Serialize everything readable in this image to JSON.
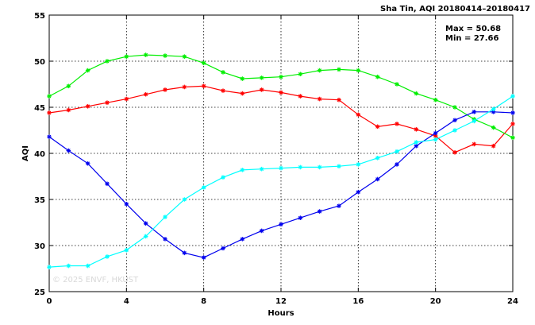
{
  "chart_data": {
    "type": "line",
    "title": "Sha Tin, AQI 20180414–20180417",
    "xlabel": "Hours",
    "ylabel": "AQI",
    "xlim": [
      0,
      24
    ],
    "ylim": [
      25,
      55
    ],
    "xticks": [
      0,
      4,
      8,
      12,
      16,
      20,
      24
    ],
    "yticks": [
      25,
      30,
      35,
      40,
      45,
      50,
      55
    ],
    "grid": true,
    "max_label": "Max = 50.68",
    "min_label": "Min = 27.66",
    "watermark": "© 2025  ENVF, HKUST",
    "x": [
      0,
      1,
      2,
      3,
      4,
      5,
      6,
      7,
      8,
      9,
      10,
      11,
      12,
      13,
      14,
      15,
      16,
      17,
      18,
      19,
      20,
      21,
      22,
      23,
      24
    ],
    "series": [
      {
        "color": "#ff0000",
        "values": [
          44.4,
          44.7,
          45.1,
          45.5,
          45.9,
          46.4,
          46.9,
          47.2,
          47.3,
          46.8,
          46.5,
          46.9,
          46.6,
          46.2,
          45.9,
          45.8,
          44.2,
          42.9,
          43.2,
          42.6,
          41.9,
          40.1,
          41.0,
          40.8,
          43.2
        ]
      },
      {
        "color": "#00ee00",
        "values": [
          46.2,
          47.3,
          49.0,
          50.0,
          50.5,
          50.68,
          50.6,
          50.5,
          49.8,
          48.8,
          48.1,
          48.2,
          48.3,
          48.6,
          49.0,
          49.1,
          49.0,
          48.3,
          47.5,
          46.5,
          45.8,
          45.0,
          43.7,
          42.8,
          41.7
        ]
      },
      {
        "color": "#0000ee",
        "values": [
          41.8,
          40.3,
          38.9,
          36.7,
          34.5,
          32.4,
          30.7,
          29.2,
          28.7,
          29.7,
          30.7,
          31.6,
          32.3,
          33.0,
          33.7,
          34.3,
          35.8,
          37.2,
          38.8,
          40.8,
          42.2,
          43.6,
          44.5,
          44.5,
          44.4
        ]
      },
      {
        "color": "#00ffff",
        "values": [
          27.66,
          27.8,
          27.8,
          28.8,
          29.5,
          31.0,
          33.1,
          35.0,
          36.3,
          37.4,
          38.2,
          38.3,
          38.4,
          38.5,
          38.5,
          38.6,
          38.8,
          39.5,
          40.2,
          41.2,
          41.5,
          42.5,
          43.5,
          44.8,
          46.2
        ]
      }
    ]
  }
}
